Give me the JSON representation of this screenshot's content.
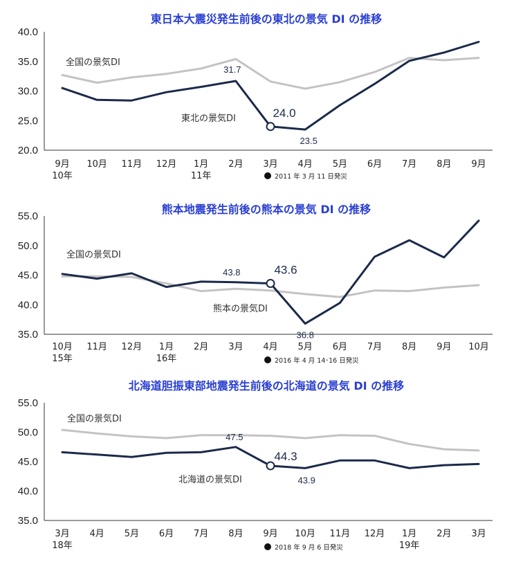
{
  "colors": {
    "national": "#c3c3c3",
    "regional": "#1b2a4a",
    "title": "#2a3fd1",
    "axis": "#333333"
  },
  "chart_data": [
    {
      "type": "line",
      "title": "東日本大震災発生前後の東北の景気 DI の推移",
      "categories": [
        "9月",
        "10月",
        "11月",
        "12月",
        "1月",
        "2月",
        "3月",
        "4月",
        "5月",
        "6月",
        "7月",
        "8月",
        "9月"
      ],
      "year_labels": [
        {
          "index": 0,
          "text": "10年"
        },
        {
          "index": 4,
          "text": "11年"
        }
      ],
      "ylim": [
        20,
        40
      ],
      "yticks": [
        "20.0",
        "25.0",
        "30.0",
        "35.0",
        "40.0"
      ],
      "event_note": "2011 年 3 月 11 日発災",
      "event_index": 6,
      "series": [
        {
          "name": "全国の景気DI",
          "role": "national",
          "values": [
            32.7,
            31.4,
            32.3,
            32.9,
            33.8,
            35.4,
            31.6,
            30.4,
            31.5,
            33.2,
            35.6,
            35.2,
            35.6
          ]
        },
        {
          "name": "東北の景気DI",
          "role": "regional",
          "values": [
            30.5,
            28.5,
            28.4,
            29.8,
            30.7,
            31.7,
            24.0,
            23.5,
            27.6,
            31.2,
            35.1,
            36.5,
            38.3
          ]
        }
      ],
      "labels": [
        {
          "index": 5,
          "text": "31.7",
          "size": "small"
        },
        {
          "index": 6,
          "text": "24.0",
          "size": "big"
        },
        {
          "index": 7,
          "text": "23.5",
          "size": "small"
        }
      ]
    },
    {
      "type": "line",
      "title": "熊本地震発生前後の熊本の景気 DI の推移",
      "categories": [
        "10月",
        "11月",
        "12月",
        "1月",
        "2月",
        "3月",
        "4月",
        "5月",
        "6月",
        "7月",
        "8月",
        "9月",
        "10月"
      ],
      "year_labels": [
        {
          "index": 0,
          "text": "15年"
        },
        {
          "index": 3,
          "text": "16年"
        }
      ],
      "ylim": [
        35,
        55
      ],
      "yticks": [
        "35.0",
        "40.0",
        "45.0",
        "50.0",
        "55.0"
      ],
      "event_note": "2016 年 4 月 14･16 日発災",
      "event_index": 6,
      "series": [
        {
          "name": "全国の景気DI",
          "role": "national",
          "values": [
            44.8,
            44.8,
            44.7,
            43.6,
            42.3,
            42.7,
            42.4,
            41.8,
            41.3,
            42.4,
            42.3,
            42.9,
            43.3
          ]
        },
        {
          "name": "熊本の景気DI",
          "role": "regional",
          "values": [
            45.2,
            44.4,
            45.3,
            43.0,
            43.9,
            43.8,
            43.6,
            36.8,
            40.3,
            48.1,
            50.9,
            48.0,
            54.2
          ]
        }
      ],
      "labels": [
        {
          "index": 5,
          "text": "43.8",
          "size": "small"
        },
        {
          "index": 6,
          "text": "43.6",
          "size": "big"
        },
        {
          "index": 7,
          "text": "36.8",
          "size": "small"
        }
      ]
    },
    {
      "type": "line",
      "title": "北海道胆振東部地震発生前後の北海道の景気 DI の推移",
      "categories": [
        "3月",
        "4月",
        "5月",
        "6月",
        "7月",
        "8月",
        "9月",
        "10月",
        "11月",
        "12月",
        "1月",
        "2月",
        "3月"
      ],
      "year_labels": [
        {
          "index": 0,
          "text": "18年"
        },
        {
          "index": 10,
          "text": "19年"
        }
      ],
      "ylim": [
        35,
        55
      ],
      "yticks": [
        "35.0",
        "40.0",
        "45.0",
        "50.0",
        "55.0"
      ],
      "event_note": "2018 年 9 月 6 日発災",
      "event_index": 6,
      "series": [
        {
          "name": "全国の景気DI",
          "role": "national",
          "values": [
            50.4,
            49.8,
            49.3,
            49.0,
            49.5,
            49.5,
            49.4,
            49.0,
            49.5,
            49.4,
            48.0,
            47.1,
            46.9
          ]
        },
        {
          "name": "北海道の景気DI",
          "role": "regional",
          "values": [
            46.6,
            46.2,
            45.8,
            46.5,
            46.6,
            47.5,
            44.3,
            43.9,
            45.2,
            45.2,
            43.9,
            44.4,
            44.6
          ]
        }
      ],
      "labels": [
        {
          "index": 5,
          "text": "47.5",
          "size": "small"
        },
        {
          "index": 6,
          "text": "44.3",
          "size": "big"
        },
        {
          "index": 7,
          "text": "43.9",
          "size": "small"
        }
      ]
    }
  ]
}
